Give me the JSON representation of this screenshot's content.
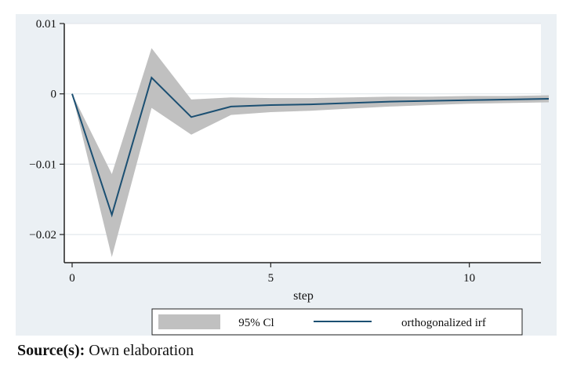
{
  "chart_data": {
    "type": "line",
    "xlabel": "step",
    "ylabel": "",
    "xlim": [
      0,
      12
    ],
    "ylim": [
      -0.024,
      0.01
    ],
    "xticks": [
      0,
      5,
      10
    ],
    "xtick_labels": [
      "0",
      "5",
      "10"
    ],
    "yticks": [
      0.01,
      0,
      -0.01,
      -0.02
    ],
    "ytick_labels": [
      "0.01",
      "0",
      "−0.01",
      "−0.02"
    ],
    "grid": true,
    "legend_position": "bottom",
    "series": [
      {
        "name": "orthogonalized irf",
        "kind": "line",
        "color": "#1b4f72",
        "x": [
          0,
          1,
          2,
          3,
          4,
          5,
          6,
          7,
          8,
          9,
          10,
          11,
          12
        ],
        "y": [
          0,
          -0.0172,
          0.0023,
          -0.0033,
          -0.0018,
          -0.0016,
          -0.0015,
          -0.0013,
          -0.0011,
          -0.001,
          -0.0009,
          -0.0008,
          -0.0007
        ]
      },
      {
        "name": "95% CI",
        "kind": "band",
        "color": "#c0c0c0",
        "x": [
          0,
          1,
          2,
          3,
          4,
          5,
          6,
          7,
          8,
          9,
          10,
          11,
          12
        ],
        "lower": [
          0,
          -0.0232,
          -0.002,
          -0.0058,
          -0.003,
          -0.0026,
          -0.0024,
          -0.0021,
          -0.0018,
          -0.0016,
          -0.0014,
          -0.0013,
          -0.0012
        ],
        "upper": [
          0,
          -0.0114,
          0.0065,
          -0.0008,
          -0.0005,
          -0.0006,
          -0.0006,
          -0.0005,
          -0.0004,
          -0.0004,
          -0.0003,
          -0.0003,
          -0.0002
        ]
      }
    ]
  },
  "legend": {
    "ci_label": "95% Cl",
    "irf_label": "orthogonalized irf"
  },
  "source": {
    "prefix": "Source(s):",
    "text": "Own elaboration"
  }
}
